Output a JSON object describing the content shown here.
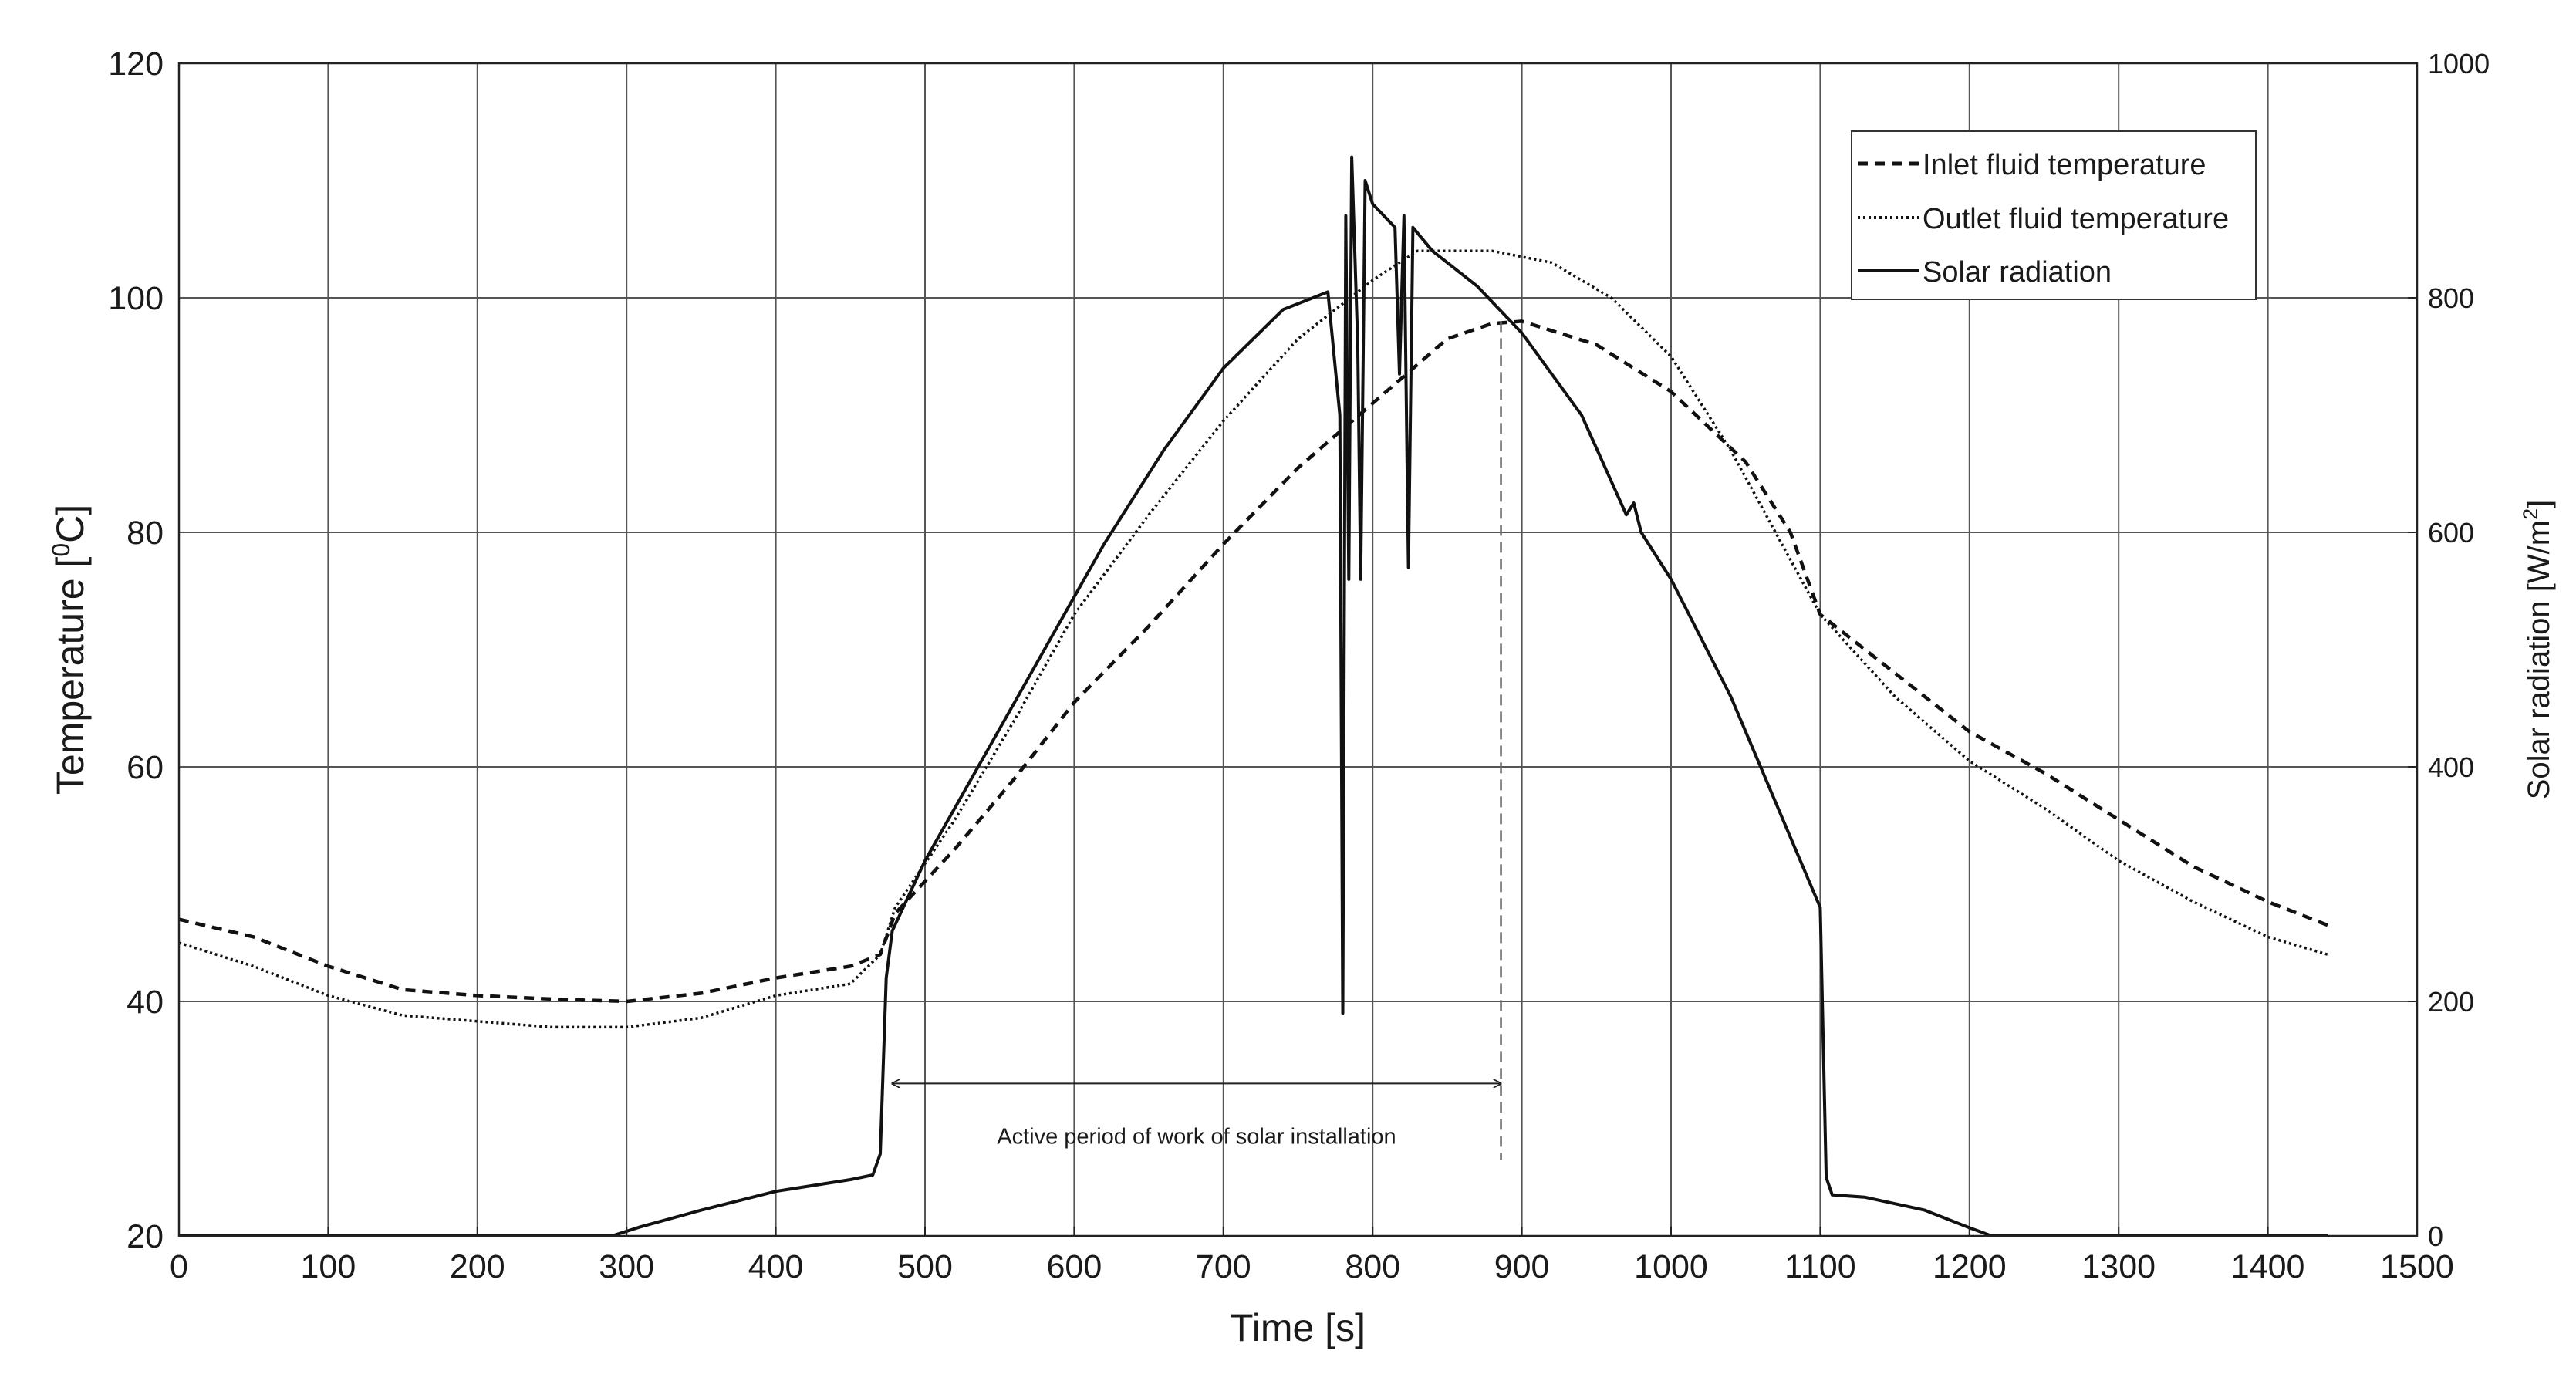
{
  "chart_data": {
    "type": "line",
    "xlabel": "Time [s]",
    "ylabel": {
      "pre": "Temperature [",
      "sup": "0",
      "post": "C]"
    },
    "y2label": {
      "pre": "Solar radiation [W/m",
      "sup": "2",
      "post": "]"
    },
    "xlim": [
      0,
      1500
    ],
    "ylim": [
      20,
      120
    ],
    "y2lim": [
      0,
      1000
    ],
    "x_ticks": [
      0,
      100,
      200,
      300,
      400,
      500,
      600,
      700,
      800,
      900,
      1000,
      1100,
      1200,
      1300,
      1400,
      1500
    ],
    "y_ticks": [
      20,
      40,
      60,
      80,
      100,
      120
    ],
    "y2_ticks": [
      0,
      200,
      400,
      600,
      800,
      1000
    ],
    "grid": true,
    "legend_position": "top-right",
    "series": [
      {
        "name": "Inlet fluid temperature",
        "axis": "left",
        "style": "dashed",
        "points": [
          [
            0,
            47
          ],
          [
            50,
            45.5
          ],
          [
            100,
            43
          ],
          [
            150,
            41
          ],
          [
            200,
            40.5
          ],
          [
            250,
            40.2
          ],
          [
            300,
            40
          ],
          [
            350,
            40.7
          ],
          [
            400,
            42
          ],
          [
            450,
            43
          ],
          [
            470,
            44
          ],
          [
            480,
            47.5
          ],
          [
            520,
            53
          ],
          [
            560,
            59
          ],
          [
            600,
            65.5
          ],
          [
            650,
            72
          ],
          [
            700,
            79
          ],
          [
            750,
            85.5
          ],
          [
            800,
            91
          ],
          [
            850,
            96.5
          ],
          [
            880,
            97.8
          ],
          [
            900,
            98
          ],
          [
            950,
            96
          ],
          [
            1000,
            92
          ],
          [
            1050,
            86
          ],
          [
            1080,
            80
          ],
          [
            1100,
            73
          ],
          [
            1150,
            68
          ],
          [
            1200,
            63
          ],
          [
            1250,
            59.5
          ],
          [
            1300,
            55.5
          ],
          [
            1350,
            51.5
          ],
          [
            1400,
            48.5
          ],
          [
            1440,
            46.5
          ]
        ]
      },
      {
        "name": "Outlet fluid temperature",
        "axis": "left",
        "style": "dotted",
        "points": [
          [
            0,
            45
          ],
          [
            50,
            43
          ],
          [
            100,
            40.5
          ],
          [
            150,
            38.8
          ],
          [
            200,
            38.3
          ],
          [
            250,
            37.8
          ],
          [
            300,
            37.8
          ],
          [
            350,
            38.6
          ],
          [
            400,
            40.5
          ],
          [
            450,
            41.5
          ],
          [
            470,
            44
          ],
          [
            480,
            48
          ],
          [
            520,
            55.5
          ],
          [
            560,
            64
          ],
          [
            600,
            73
          ],
          [
            650,
            81.5
          ],
          [
            700,
            89.5
          ],
          [
            750,
            96.5
          ],
          [
            800,
            101.5
          ],
          [
            830,
            104
          ],
          [
            850,
            104
          ],
          [
            880,
            104
          ],
          [
            920,
            103
          ],
          [
            960,
            100
          ],
          [
            1000,
            95
          ],
          [
            1040,
            87
          ],
          [
            1070,
            80
          ],
          [
            1100,
            73
          ],
          [
            1150,
            66
          ],
          [
            1200,
            60.5
          ],
          [
            1250,
            56.5
          ],
          [
            1300,
            52
          ],
          [
            1350,
            48.5
          ],
          [
            1400,
            45.5
          ],
          [
            1440,
            44
          ]
        ]
      },
      {
        "name": "Solar radiation",
        "axis": "right",
        "style": "solid",
        "points": [
          [
            0,
            0
          ],
          [
            100,
            0
          ],
          [
            200,
            0
          ],
          [
            290,
            0
          ],
          [
            310,
            8
          ],
          [
            350,
            22
          ],
          [
            400,
            38
          ],
          [
            450,
            48
          ],
          [
            465,
            52
          ],
          [
            470,
            70
          ],
          [
            474,
            220
          ],
          [
            478,
            260
          ],
          [
            500,
            320
          ],
          [
            540,
            410
          ],
          [
            580,
            500
          ],
          [
            620,
            590
          ],
          [
            660,
            670
          ],
          [
            700,
            740
          ],
          [
            740,
            790
          ],
          [
            770,
            805
          ],
          [
            778,
            700
          ],
          [
            780,
            190
          ],
          [
            782,
            870
          ],
          [
            784,
            560
          ],
          [
            786,
            920
          ],
          [
            790,
            760
          ],
          [
            792,
            560
          ],
          [
            795,
            900
          ],
          [
            800,
            880
          ],
          [
            815,
            860
          ],
          [
            818,
            735
          ],
          [
            821,
            870
          ],
          [
            824,
            570
          ],
          [
            827,
            860
          ],
          [
            840,
            840
          ],
          [
            870,
            810
          ],
          [
            900,
            770
          ],
          [
            940,
            700
          ],
          [
            970,
            615
          ],
          [
            975,
            625
          ],
          [
            980,
            600
          ],
          [
            1000,
            560
          ],
          [
            1040,
            460
          ],
          [
            1080,
            340
          ],
          [
            1100,
            280
          ],
          [
            1104,
            50
          ],
          [
            1108,
            35
          ],
          [
            1130,
            33
          ],
          [
            1170,
            22
          ],
          [
            1200,
            7
          ],
          [
            1215,
            0
          ],
          [
            1300,
            0
          ],
          [
            1440,
            0
          ]
        ]
      }
    ],
    "annotations": [
      {
        "text": "Active period of work of solar installation",
        "x_from": 478,
        "x_to": 886,
        "y": 33,
        "marker_x": 886
      }
    ]
  }
}
